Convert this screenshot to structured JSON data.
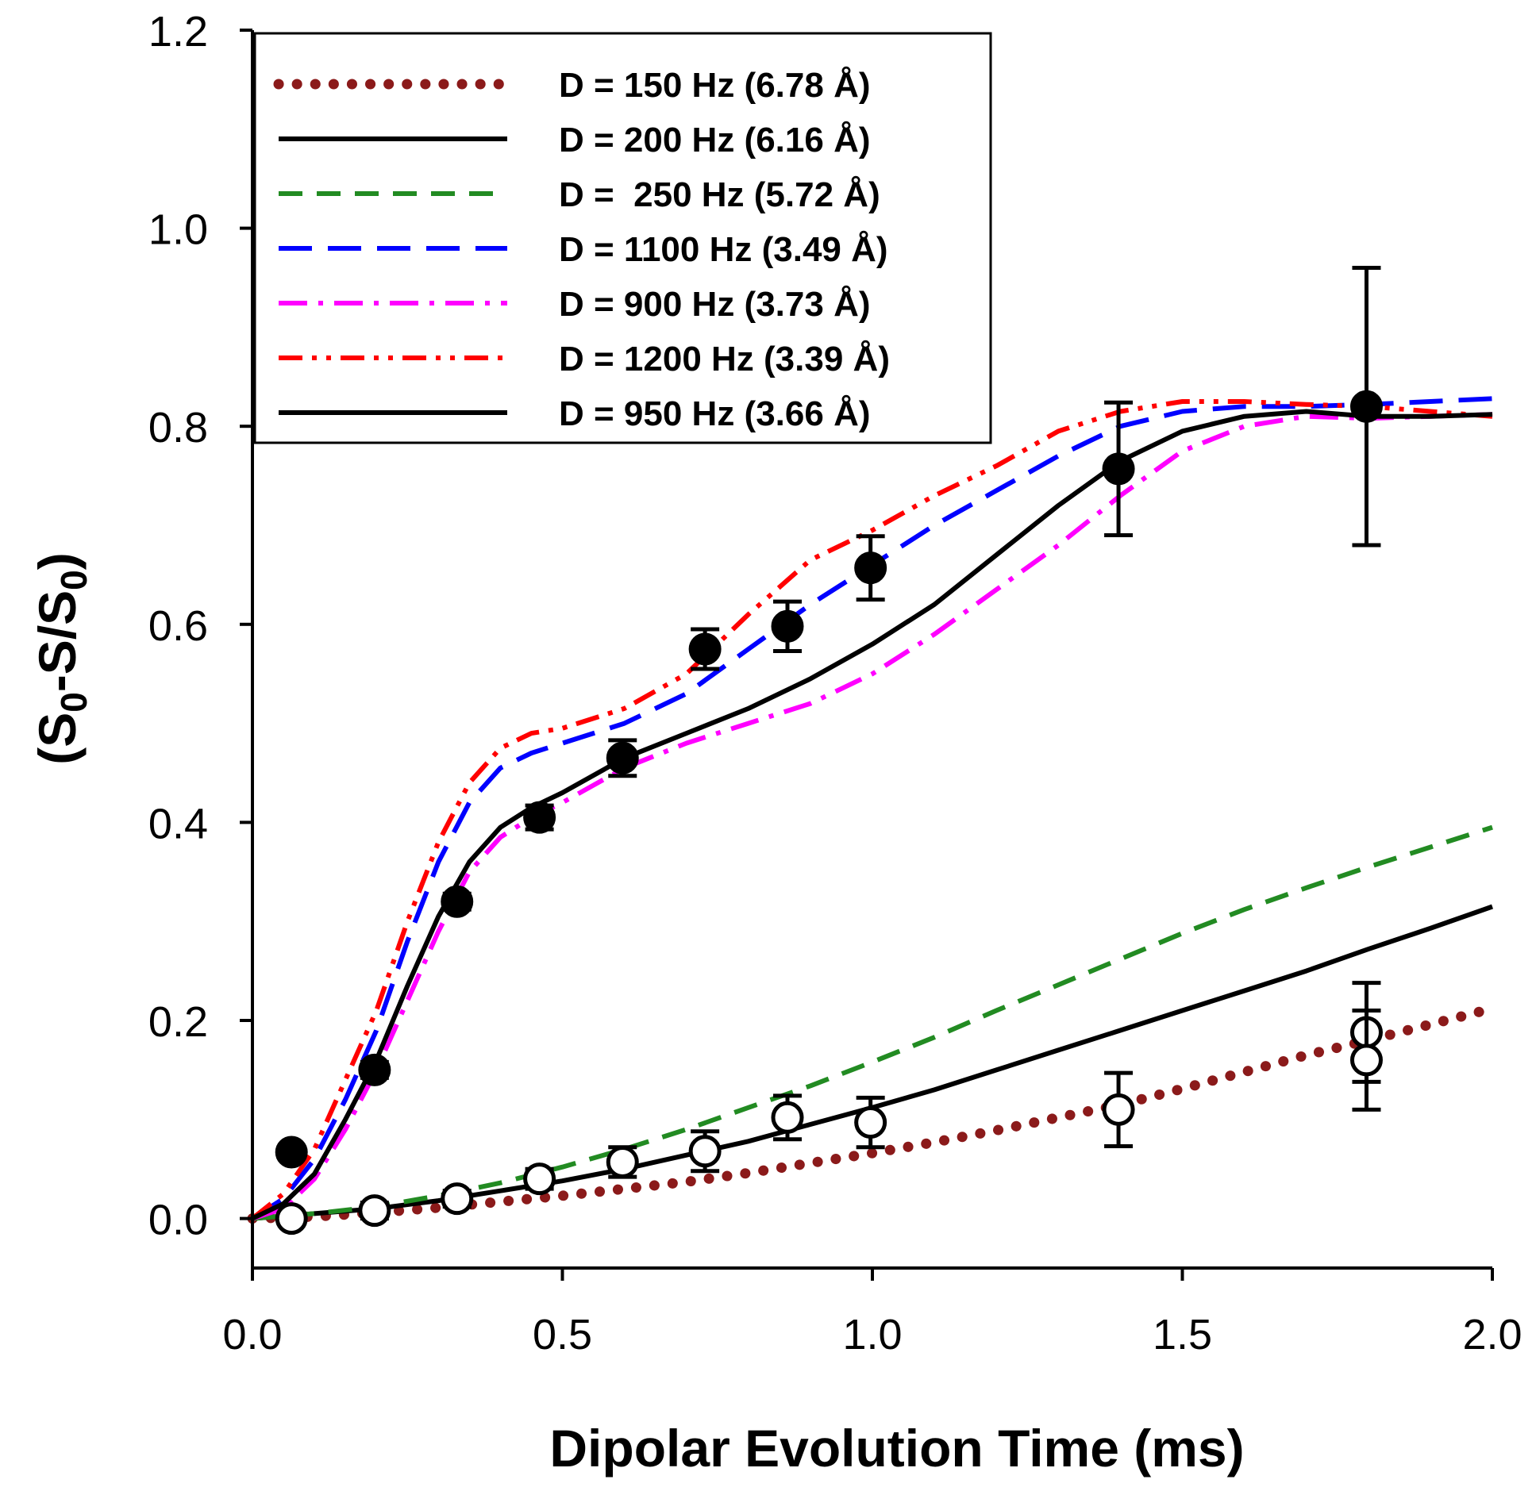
{
  "chart_data": {
    "type": "scatter",
    "title": "",
    "xlabel": "Dipolar Evolution Time (ms)",
    "ylabel": {
      "p1": "(S",
      "s1": "0",
      "p2": "-S/S",
      "s2": "0",
      "p3": ")"
    },
    "xlim": [
      0,
      2.0
    ],
    "ylim": [
      -0.05,
      1.2
    ],
    "xticks": [
      {
        "value": 0.0,
        "label": "0.0"
      },
      {
        "value": 0.5,
        "label": "0.5"
      },
      {
        "value": 1.0,
        "label": "1.0"
      },
      {
        "value": 1.5,
        "label": "1.5"
      },
      {
        "value": 2.0,
        "label": "2.0"
      }
    ],
    "yticks": [
      {
        "value": 0.0,
        "label": "0.0"
      },
      {
        "value": 0.2,
        "label": "0.2"
      },
      {
        "value": 0.4,
        "label": "0.4"
      },
      {
        "value": 0.6,
        "label": "0.6"
      },
      {
        "value": 0.8,
        "label": "0.8"
      },
      {
        "value": 1.0,
        "label": "1.0"
      },
      {
        "value": 1.2,
        "label": "1.2"
      }
    ],
    "grid": false,
    "legend_position": "top-left",
    "series": [
      {
        "name": "D = 150 Hz (6.78 Å)",
        "style": "dotted",
        "color": "#8b1a1a",
        "x": [
          0,
          0.1,
          0.2,
          0.3,
          0.4,
          0.5,
          0.6,
          0.7,
          0.8,
          0.9,
          1.0,
          1.1,
          1.2,
          1.3,
          1.4,
          1.5,
          1.6,
          1.7,
          1.8,
          1.9,
          2.0
        ],
        "y": [
          0,
          0.002,
          0.006,
          0.011,
          0.017,
          0.023,
          0.03,
          0.037,
          0.046,
          0.056,
          0.066,
          0.077,
          0.089,
          0.102,
          0.115,
          0.131,
          0.148,
          0.165,
          0.18,
          0.196,
          0.212
        ]
      },
      {
        "name": "D = 200 Hz (6.16 Å)",
        "style": "solid",
        "color": "#000000",
        "x": [
          0,
          0.1,
          0.2,
          0.3,
          0.4,
          0.5,
          0.6,
          0.7,
          0.8,
          0.9,
          1.0,
          1.1,
          1.2,
          1.3,
          1.4,
          1.5,
          1.6,
          1.7,
          1.8,
          1.9,
          2.0
        ],
        "y": [
          0,
          0.005,
          0.01,
          0.018,
          0.028,
          0.038,
          0.05,
          0.064,
          0.078,
          0.095,
          0.112,
          0.13,
          0.15,
          0.17,
          0.19,
          0.21,
          0.23,
          0.25,
          0.272,
          0.293,
          0.315
        ]
      },
      {
        "name": "D =  250 Hz (5.72 Å)",
        "style": "dashed",
        "color": "#228b22",
        "x": [
          0,
          0.1,
          0.2,
          0.3,
          0.4,
          0.5,
          0.6,
          0.7,
          0.8,
          0.9,
          1.0,
          1.1,
          1.2,
          1.3,
          1.4,
          1.5,
          1.6,
          1.7,
          1.8,
          1.9,
          2.0
        ],
        "y": [
          0,
          0.005,
          0.012,
          0.023,
          0.036,
          0.052,
          0.07,
          0.09,
          0.112,
          0.134,
          0.158,
          0.183,
          0.21,
          0.236,
          0.262,
          0.288,
          0.312,
          0.334,
          0.355,
          0.375,
          0.395
        ]
      },
      {
        "name": "D = 1100 Hz (3.49 Å)",
        "style": "longdash",
        "color": "#0000ff",
        "x": [
          0,
          0.05,
          0.1,
          0.15,
          0.2,
          0.25,
          0.3,
          0.35,
          0.4,
          0.45,
          0.5,
          0.6,
          0.7,
          0.8,
          0.9,
          1.0,
          1.1,
          1.2,
          1.3,
          1.4,
          1.5,
          1.6,
          1.7,
          1.8,
          1.9,
          2.0
        ],
        "y": [
          0,
          0.02,
          0.06,
          0.12,
          0.19,
          0.28,
          0.36,
          0.42,
          0.455,
          0.47,
          0.48,
          0.5,
          0.53,
          0.575,
          0.62,
          0.66,
          0.7,
          0.735,
          0.77,
          0.8,
          0.815,
          0.82,
          0.82,
          0.822,
          0.825,
          0.828
        ]
      },
      {
        "name": "D = 900 Hz (3.73 Å)",
        "style": "dashdot",
        "color": "#ff00ff",
        "x": [
          0,
          0.05,
          0.1,
          0.15,
          0.2,
          0.25,
          0.3,
          0.35,
          0.4,
          0.45,
          0.5,
          0.6,
          0.7,
          0.8,
          0.9,
          1.0,
          1.1,
          1.2,
          1.3,
          1.4,
          1.5,
          1.6,
          1.7,
          1.8,
          1.9,
          2.0
        ],
        "y": [
          0,
          0.01,
          0.04,
          0.09,
          0.15,
          0.22,
          0.29,
          0.35,
          0.385,
          0.405,
          0.42,
          0.455,
          0.48,
          0.5,
          0.52,
          0.55,
          0.59,
          0.635,
          0.68,
          0.73,
          0.775,
          0.8,
          0.81,
          0.808,
          0.81,
          0.812
        ]
      },
      {
        "name": "D = 1200 Hz (3.39 Å)",
        "style": "dashdotdot",
        "color": "#ff0000",
        "x": [
          0,
          0.05,
          0.1,
          0.15,
          0.2,
          0.25,
          0.3,
          0.35,
          0.4,
          0.45,
          0.5,
          0.6,
          0.7,
          0.8,
          0.9,
          1.0,
          1.1,
          1.2,
          1.3,
          1.4,
          1.5,
          1.6,
          1.7,
          1.8,
          1.9,
          2.0
        ],
        "y": [
          0,
          0.025,
          0.07,
          0.14,
          0.21,
          0.3,
          0.38,
          0.44,
          0.475,
          0.49,
          0.495,
          0.515,
          0.55,
          0.61,
          0.665,
          0.695,
          0.73,
          0.76,
          0.795,
          0.815,
          0.825,
          0.825,
          0.822,
          0.82,
          0.815,
          0.81
        ]
      },
      {
        "name": "D = 950 Hz (3.66 Å)",
        "style": "solid",
        "color": "#000000",
        "x": [
          0,
          0.05,
          0.1,
          0.15,
          0.2,
          0.25,
          0.3,
          0.35,
          0.4,
          0.45,
          0.5,
          0.6,
          0.7,
          0.8,
          0.9,
          1.0,
          1.1,
          1.2,
          1.3,
          1.4,
          1.5,
          1.6,
          1.7,
          1.8,
          1.9,
          2.0
        ],
        "y": [
          0,
          0.015,
          0.045,
          0.1,
          0.16,
          0.235,
          0.305,
          0.36,
          0.395,
          0.415,
          0.43,
          0.465,
          0.49,
          0.515,
          0.545,
          0.58,
          0.62,
          0.67,
          0.72,
          0.765,
          0.795,
          0.81,
          0.815,
          0.81,
          0.81,
          0.812
        ]
      }
    ],
    "markers": [
      {
        "name": "filled",
        "fill": "#000000",
        "points": [
          {
            "x": 0.063,
            "y": 0.067,
            "err": 0
          },
          {
            "x": 0.197,
            "y": 0.15,
            "err": 0.008
          },
          {
            "x": 0.33,
            "y": 0.32,
            "err": 0.008
          },
          {
            "x": 0.463,
            "y": 0.405,
            "err": 0.012
          },
          {
            "x": 0.597,
            "y": 0.465,
            "err": 0.018
          },
          {
            "x": 0.73,
            "y": 0.575,
            "err": 0.02
          },
          {
            "x": 0.863,
            "y": 0.598,
            "err": 0.025
          },
          {
            "x": 0.997,
            "y": 0.657,
            "err": 0.032
          },
          {
            "x": 1.397,
            "y": 0.757,
            "err": 0.067
          },
          {
            "x": 1.797,
            "y": 0.82,
            "err": 0.14
          }
        ]
      },
      {
        "name": "open",
        "fill": "#ffffff",
        "points": [
          {
            "x": 0.063,
            "y": 0.0,
            "err": 0
          },
          {
            "x": 0.197,
            "y": 0.008,
            "err": 0.008
          },
          {
            "x": 0.33,
            "y": 0.02,
            "err": 0.008
          },
          {
            "x": 0.463,
            "y": 0.04,
            "err": 0.01
          },
          {
            "x": 0.597,
            "y": 0.057,
            "err": 0.015
          },
          {
            "x": 0.73,
            "y": 0.068,
            "err": 0.02
          },
          {
            "x": 0.863,
            "y": 0.102,
            "err": 0.022
          },
          {
            "x": 0.997,
            "y": 0.097,
            "err": 0.025
          },
          {
            "x": 1.397,
            "y": 0.11,
            "err": 0.037
          },
          {
            "x": 1.797,
            "y": 0.188,
            "err": 0.05
          },
          {
            "x": 1.797,
            "y": 0.16,
            "err": 0.05
          }
        ]
      }
    ]
  }
}
